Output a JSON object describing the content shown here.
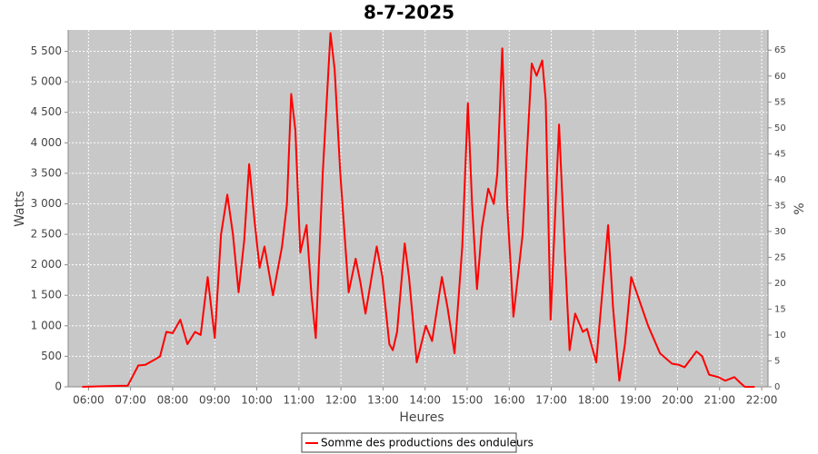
{
  "chart_data": {
    "type": "line",
    "title": "8-7-2025",
    "x_label": "Heures",
    "y_label": "Watts",
    "y2_label": "%",
    "x": [
      "05:51",
      "06:56",
      "07:11",
      "07:21",
      "07:35",
      "07:42",
      "07:51",
      "08:00",
      "08:11",
      "08:21",
      "08:32",
      "08:40",
      "08:50",
      "09:00",
      "09:09",
      "09:18",
      "09:26",
      "09:34",
      "09:42",
      "09:49",
      "09:57",
      "10:04",
      "10:11",
      "10:23",
      "10:36",
      "10:43",
      "10:49",
      "10:55",
      "11:02",
      "11:11",
      "11:18",
      "11:24",
      "11:34",
      "11:45",
      "11:51",
      "11:59",
      "12:11",
      "12:21",
      "12:28",
      "12:35",
      "12:51",
      "12:59",
      "13:09",
      "13:14",
      "13:20",
      "13:31",
      "13:37",
      "13:48",
      "14:01",
      "14:10",
      "14:24",
      "14:32",
      "14:42",
      "14:53",
      "15:01",
      "15:07",
      "15:14",
      "15:21",
      "15:30",
      "15:38",
      "15:43",
      "15:50",
      "15:57",
      "16:06",
      "16:19",
      "16:32",
      "16:39",
      "16:47",
      "16:52",
      "16:59",
      "17:11",
      "17:18",
      "17:26",
      "17:34",
      "17:45",
      "17:51",
      "18:04",
      "18:21",
      "18:28",
      "18:37",
      "18:45",
      "18:54",
      "19:03",
      "19:18",
      "19:35",
      "19:52",
      "20:02",
      "20:10",
      "20:27",
      "20:35",
      "20:45",
      "20:58",
      "21:08",
      "21:21",
      "21:30",
      "21:36",
      "21:50"
    ],
    "series": [
      {
        "name": "Somme des productions des onduleurs",
        "color": "#ff0000",
        "values": [
          0,
          20,
          350,
          360,
          450,
          500,
          900,
          880,
          1100,
          700,
          900,
          850,
          1800,
          800,
          2500,
          3150,
          2500,
          1550,
          2400,
          3650,
          2700,
          1950,
          2300,
          1500,
          2300,
          3000,
          4800,
          4200,
          2200,
          2650,
          1500,
          800,
          3500,
          5800,
          5200,
          3500,
          1550,
          2100,
          1700,
          1200,
          2300,
          1800,
          700,
          600,
          900,
          2350,
          1800,
          400,
          1000,
          750,
          1800,
          1300,
          550,
          2300,
          4650,
          3000,
          1600,
          2600,
          3250,
          3000,
          3500,
          5550,
          3000,
          1150,
          2500,
          5300,
          5100,
          5350,
          4700,
          1100,
          4300,
          2500,
          600,
          1200,
          900,
          950,
          400,
          2650,
          1300,
          100,
          700,
          1800,
          1500,
          1000,
          550,
          380,
          360,
          320,
          580,
          500,
          200,
          160,
          100,
          160,
          60,
          0,
          0
        ]
      }
    ],
    "xlim": [
      "05:31",
      "22:09"
    ],
    "xticks": [
      "06:00",
      "07:00",
      "08:00",
      "09:00",
      "10:00",
      "11:00",
      "12:00",
      "13:00",
      "14:00",
      "15:00",
      "16:00",
      "17:00",
      "18:00",
      "19:00",
      "20:00",
      "21:00",
      "22:00"
    ],
    "ylim": [
      0,
      5850
    ],
    "yticks": [
      0,
      500,
      {
        "value": 1000,
        "label": "1 000"
      },
      {
        "value": 1500,
        "label": "1 500"
      },
      {
        "value": 2000,
        "label": "2 000"
      },
      {
        "value": 2500,
        "label": "2 500"
      },
      {
        "value": 3000,
        "label": "3 000"
      },
      {
        "value": 3500,
        "label": "3 500"
      },
      {
        "value": 4000,
        "label": "4 000"
      },
      {
        "value": 4500,
        "label": "4 500"
      },
      {
        "value": 5000,
        "label": "5 000"
      },
      {
        "value": 5500,
        "label": "5 500"
      }
    ],
    "y2lim": [
      0,
      68.9
    ],
    "y2ticks": [
      0,
      5,
      10,
      15,
      20,
      25,
      30,
      35,
      40,
      45,
      50,
      55,
      60,
      65
    ],
    "grid": true,
    "legend": "bottom"
  }
}
